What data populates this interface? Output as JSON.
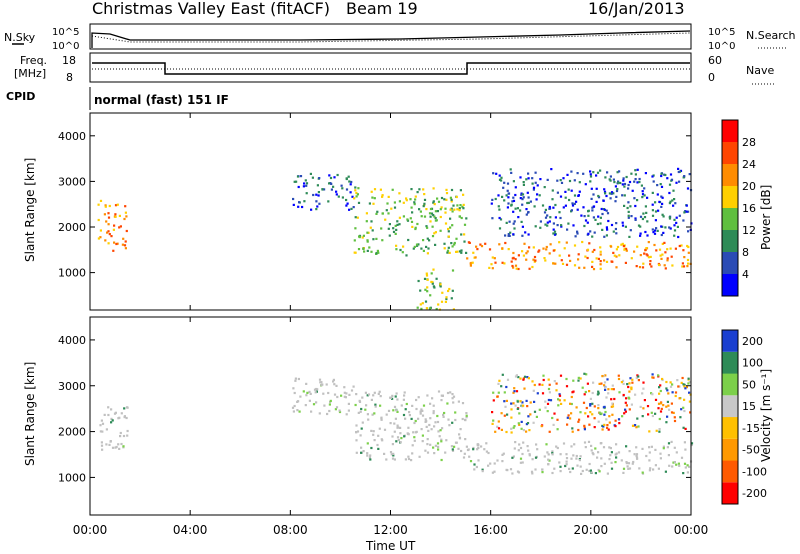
{
  "header": {
    "station": "Christmas Valley East (fitACF)",
    "beam": "Beam 19",
    "date": "16/Jan/2013"
  },
  "panel_labels": {
    "nsky": "N.Sky",
    "nsearch": "N.Search",
    "freq_line1": "Freq.",
    "freq_line2": "[MHz]",
    "nave": "Nave",
    "cpid": "CPID",
    "cpid_text": "normal (fast) 151 IF",
    "noise_ticks_left": [
      "10^5",
      "10^0"
    ],
    "noise_ticks_right": [
      "10^5",
      "10^0"
    ],
    "freq_ticks_left": [
      "18",
      "8"
    ],
    "freq_ticks_right": [
      "60",
      "0"
    ]
  },
  "colors": {
    "power_scale": [
      "#0000ff",
      "#2a4bb5",
      "#2e8b57",
      "#5fbf3f",
      "#ffd000",
      "#ff8c00",
      "#ff4500",
      "#ff0000"
    ],
    "velocity_scale": [
      "#ff0000",
      "#ff5a00",
      "#ff9900",
      "#ffc000",
      "#c8c8c8",
      "#7cd04a",
      "#2e8b57",
      "#1a3fd0"
    ],
    "ground_scatter": "#c0c0c0"
  },
  "chart_data": [
    {
      "type": "heatmap",
      "title": "Power",
      "ylabel": "Slant Range [km]",
      "xlabel": "",
      "x_ticks": [
        "00:00",
        "04:00",
        "08:00",
        "12:00",
        "16:00",
        "20:00",
        "00:00"
      ],
      "y_ticks": [
        "1000",
        "2000",
        "3000",
        "4000"
      ],
      "ylim": [
        180,
        4500
      ],
      "xlim_hours": [
        0,
        24
      ],
      "colorbar_label": "Power [dB]",
      "colorbar_ticks": [
        "4",
        "8",
        "12",
        "16",
        "20",
        "24",
        "28"
      ],
      "regions": [
        {
          "x_hours": [
            0.3,
            1.5
          ],
          "y_km": [
            1500,
            2600
          ],
          "level": "strong"
        },
        {
          "x_hours": [
            8.0,
            10.5
          ],
          "y_km": [
            2400,
            3200
          ],
          "level": "weak"
        },
        {
          "x_hours": [
            10.5,
            15.0
          ],
          "y_km": [
            1400,
            2900
          ],
          "level": "medium"
        },
        {
          "x_hours": [
            15.0,
            24.0
          ],
          "y_km": [
            1100,
            1700
          ],
          "level": "strong"
        },
        {
          "x_hours": [
            16.0,
            24.0
          ],
          "y_km": [
            1800,
            3300
          ],
          "level": "weak"
        },
        {
          "x_hours": [
            13.0,
            14.5
          ],
          "y_km": [
            200,
            1100
          ],
          "level": "medium"
        }
      ]
    },
    {
      "type": "heatmap",
      "title": "Velocity",
      "ylabel": "Slant Range [km]",
      "xlabel": "Time UT",
      "x_ticks": [
        "00:00",
        "04:00",
        "08:00",
        "12:00",
        "16:00",
        "20:00",
        "00:00"
      ],
      "y_ticks": [
        "1000",
        "2000",
        "3000",
        "4000"
      ],
      "ylim": [
        180,
        4500
      ],
      "xlim_hours": [
        0,
        24
      ],
      "colorbar_label": "Velocity [m s⁻¹]",
      "colorbar_ticks": [
        "200",
        "100",
        "50",
        "15",
        "-15",
        "-50",
        "-100",
        "-200"
      ],
      "regions": [
        {
          "x_hours": [
            0.3,
            1.5
          ],
          "y_km": [
            1500,
            2600
          ],
          "class": "ground"
        },
        {
          "x_hours": [
            8.0,
            10.5
          ],
          "y_km": [
            2400,
            3200
          ],
          "class": "ground"
        },
        {
          "x_hours": [
            10.5,
            15.0
          ],
          "y_km": [
            1400,
            2900
          ],
          "class": "ground"
        },
        {
          "x_hours": [
            15.0,
            24.0
          ],
          "y_km": [
            1100,
            1800
          ],
          "class": "ground"
        },
        {
          "x_hours": [
            16.0,
            24.0
          ],
          "y_km": [
            2000,
            3300
          ],
          "class": "mixed"
        }
      ]
    }
  ]
}
